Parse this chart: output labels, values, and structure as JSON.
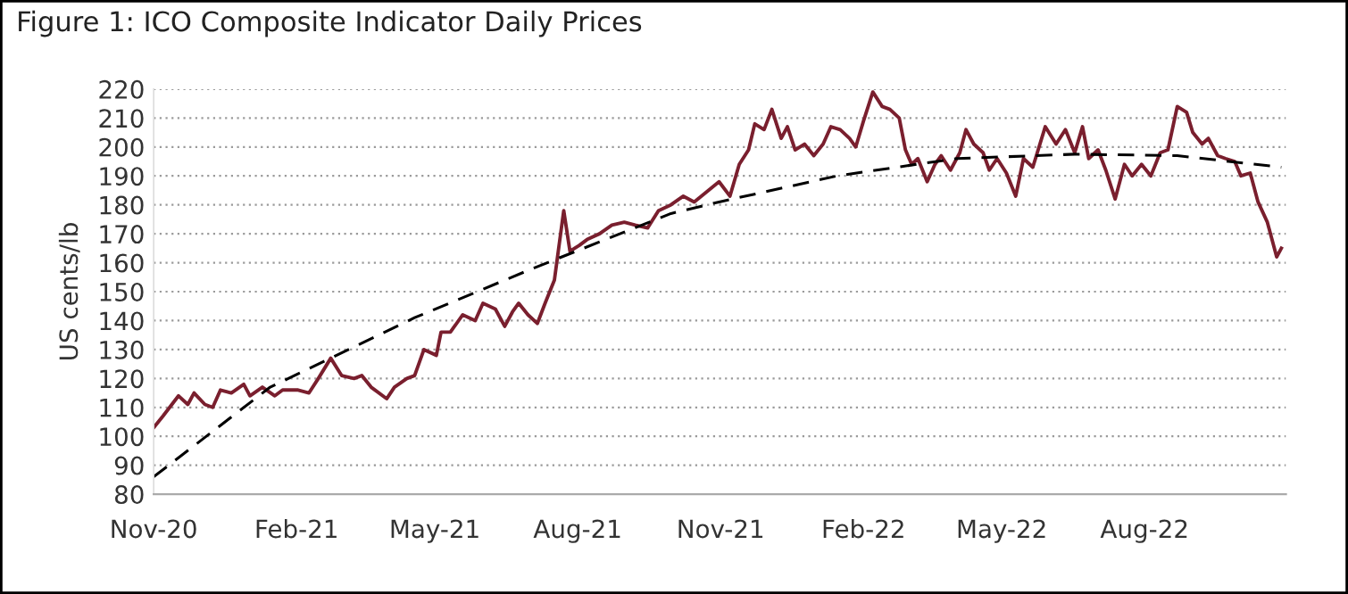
{
  "chart_data": {
    "type": "line",
    "title": "Figure 1: ICO Composite Indicator Daily Prices",
    "ylabel": "US cents/lb",
    "xlim": [
      "2020-11-01",
      "2022-10-31"
    ],
    "xticks": [
      {
        "value": "2020-11-01",
        "label": "Nov-20"
      },
      {
        "value": "2021-02-01",
        "label": "Feb-21"
      },
      {
        "value": "2021-05-01",
        "label": "May-21"
      },
      {
        "value": "2021-08-01",
        "label": "Aug-21"
      },
      {
        "value": "2021-11-01",
        "label": "Nov-21"
      },
      {
        "value": "2022-02-01",
        "label": "Feb-22"
      },
      {
        "value": "2022-05-01",
        "label": "May-22"
      },
      {
        "value": "2022-08-01",
        "label": "Aug-22"
      }
    ],
    "ylim": [
      80,
      220
    ],
    "yticks": [
      80,
      90,
      100,
      110,
      120,
      130,
      140,
      150,
      160,
      170,
      180,
      190,
      200,
      210,
      220
    ],
    "grid": "y",
    "legend": false,
    "series": [
      {
        "color": "#7a1f2e",
        "line_style": "solid",
        "x": [
          "2020-11-01",
          "2020-11-07",
          "2020-11-17",
          "2020-11-23",
          "2020-11-27",
          "2020-12-04",
          "2020-12-09",
          "2020-12-14",
          "2020-12-21",
          "2020-12-29",
          "2021-01-02",
          "2021-01-10",
          "2021-01-18",
          "2021-01-23",
          "2021-02-02",
          "2021-02-09",
          "2021-02-15",
          "2021-02-23",
          "2021-03-02",
          "2021-03-10",
          "2021-03-15",
          "2021-03-21",
          "2021-03-31",
          "2021-04-05",
          "2021-04-13",
          "2021-04-18",
          "2021-04-24",
          "2021-05-02",
          "2021-05-05",
          "2021-05-11",
          "2021-05-19",
          "2021-05-27",
          "2021-06-01",
          "2021-06-09",
          "2021-06-15",
          "2021-06-20",
          "2021-06-24",
          "2021-06-30",
          "2021-07-06",
          "2021-07-11",
          "2021-07-17",
          "2021-07-23",
          "2021-07-27",
          "2021-08-02",
          "2021-08-07",
          "2021-08-15",
          "2021-08-23",
          "2021-08-31",
          "2021-09-07",
          "2021-09-15",
          "2021-09-22",
          "2021-09-30",
          "2021-10-08",
          "2021-10-15",
          "2021-10-31",
          "2021-11-07",
          "2021-11-13",
          "2021-11-19",
          "2021-11-23",
          "2021-11-29",
          "2021-12-04",
          "2021-12-10",
          "2021-12-14",
          "2021-12-19",
          "2021-12-25",
          "2021-12-31",
          "2022-01-06",
          "2022-01-11",
          "2022-01-17",
          "2022-01-23",
          "2022-01-27",
          "2022-02-01",
          "2022-02-07",
          "2022-02-13",
          "2022-02-18",
          "2022-02-24",
          "2022-02-28",
          "2022-03-04",
          "2022-03-08",
          "2022-03-14",
          "2022-03-19",
          "2022-03-23",
          "2022-03-29",
          "2022-04-04",
          "2022-04-08",
          "2022-04-13",
          "2022-04-19",
          "2022-04-23",
          "2022-04-28",
          "2022-05-04",
          "2022-05-10",
          "2022-05-15",
          "2022-05-21",
          "2022-05-29",
          "2022-06-05",
          "2022-06-11",
          "2022-06-17",
          "2022-06-22",
          "2022-06-26",
          "2022-07-02",
          "2022-07-07",
          "2022-07-13",
          "2022-07-19",
          "2022-07-24",
          "2022-07-30",
          "2022-08-05",
          "2022-08-11",
          "2022-08-16",
          "2022-08-22",
          "2022-08-28",
          "2022-09-01",
          "2022-09-07",
          "2022-09-11",
          "2022-09-17",
          "2022-09-22",
          "2022-09-28",
          "2022-10-02",
          "2022-10-08",
          "2022-10-13",
          "2022-10-19",
          "2022-10-25",
          "2022-10-28"
        ],
        "values": [
          103,
          107,
          114,
          111,
          115,
          111,
          110,
          116,
          115,
          118,
          114,
          117,
          114,
          116,
          116,
          115,
          120,
          127,
          121,
          120,
          121,
          117,
          113,
          117,
          120,
          121,
          130,
          128,
          136,
          136,
          142,
          140,
          146,
          144,
          138,
          143,
          146,
          142,
          139,
          146,
          154,
          178,
          164,
          166,
          168,
          170,
          173,
          174,
          173,
          172,
          178,
          180,
          183,
          181,
          188,
          183,
          194,
          199,
          208,
          206,
          213,
          203,
          207,
          199,
          201,
          197,
          201,
          207,
          206,
          203,
          200,
          209,
          219,
          214,
          213,
          210,
          199,
          194,
          196,
          188,
          194,
          197,
          192,
          198,
          206,
          201,
          198,
          192,
          196,
          191,
          183,
          196,
          193,
          207,
          201,
          206,
          198,
          207,
          196,
          199,
          192,
          182,
          194,
          190,
          194,
          190,
          198,
          199,
          214,
          212,
          205,
          201,
          203,
          197,
          196,
          195,
          190,
          191,
          181,
          174,
          162,
          165
        ]
      },
      {
        "color": "#000000",
        "line_style": "dashed",
        "x": [
          "2020-11-01",
          "2021-01-15",
          "2021-04-18",
          "2021-07-03",
          "2021-09-30",
          "2021-10-31",
          "2022-01-15",
          "2022-04-02",
          "2022-06-17",
          "2022-08-22",
          "2022-10-28"
        ],
        "values": [
          86,
          117,
          141,
          158,
          177,
          181,
          190,
          196,
          197.5,
          197,
          193
        ]
      }
    ]
  }
}
